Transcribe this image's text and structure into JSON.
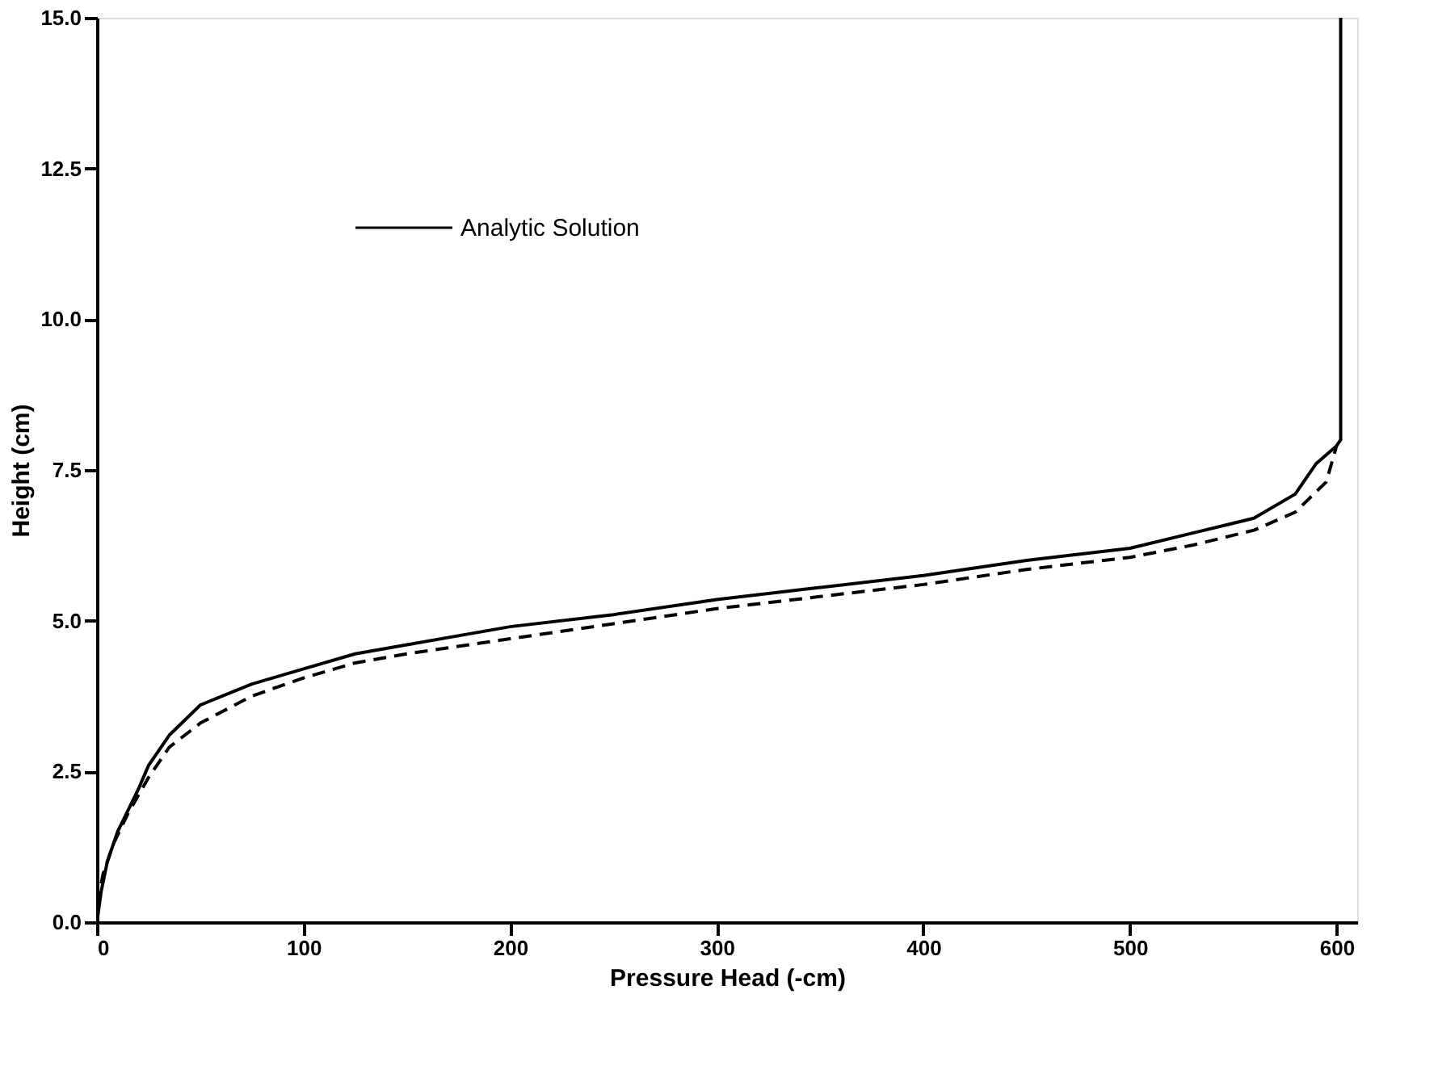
{
  "chart_data": {
    "type": "line",
    "xlabel": "Pressure Head (-cm)",
    "ylabel": "Height (cm)",
    "xlim": [
      0,
      610
    ],
    "ylim": [
      0,
      15
    ],
    "xticks": [
      0,
      100,
      200,
      300,
      400,
      500,
      600
    ],
    "yticks": [
      {
        "value": 0,
        "label": "0.0"
      },
      {
        "value": 2.5,
        "label": "2.5"
      },
      {
        "value": 5,
        "label": "5.0"
      },
      {
        "value": 7.5,
        "label": "7.5"
      },
      {
        "value": 10,
        "label": "10.0"
      },
      {
        "value": 12.5,
        "label": "12.5"
      },
      {
        "value": 15,
        "label": "15.0"
      }
    ],
    "grid": false,
    "legend": "top left",
    "marker": "none",
    "series": [
      {
        "color": "#000000",
        "line_style": "dashed",
        "x": [
          0,
          3,
          8,
          15,
          25,
          35,
          50,
          75,
          100,
          125,
          150,
          200,
          250,
          300,
          350,
          400,
          450,
          500,
          530,
          560,
          580,
          595,
          600
        ],
        "values": [
          0.3,
          0.8,
          1.3,
          1.8,
          2.4,
          2.9,
          3.3,
          3.75,
          4.05,
          4.3,
          4.45,
          4.7,
          4.95,
          5.2,
          5.4,
          5.6,
          5.85,
          6.05,
          6.25,
          6.5,
          6.8,
          7.3,
          7.9
        ]
      },
      {
        "name": "Analytic Solution",
        "color": "#000000",
        "line_style": "solid",
        "x": [
          0,
          2,
          5,
          10,
          20,
          25,
          35,
          50,
          75,
          100,
          125,
          150,
          200,
          250,
          300,
          350,
          400,
          450,
          500,
          530,
          560,
          580,
          590,
          600,
          602,
          602
        ],
        "values": [
          0,
          0.5,
          1.0,
          1.5,
          2.2,
          2.6,
          3.1,
          3.6,
          3.95,
          4.2,
          4.45,
          4.6,
          4.9,
          5.1,
          5.35,
          5.55,
          5.75,
          6.0,
          6.2,
          6.45,
          6.7,
          7.1,
          7.6,
          7.9,
          8.0,
          15
        ]
      }
    ]
  }
}
